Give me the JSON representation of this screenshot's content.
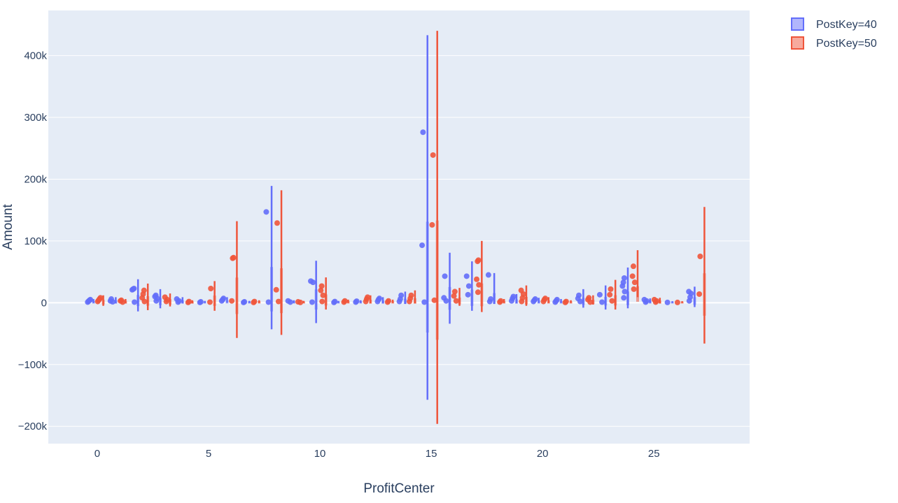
{
  "chart_data": {
    "type": "box",
    "xlabel": "ProfitCenter",
    "ylabel": "Amount",
    "xlim": [
      -2.2,
      29.3
    ],
    "ylim": [
      -228000,
      473000
    ],
    "xticks": [
      0,
      5,
      10,
      15,
      20,
      25
    ],
    "xtick_labels": [
      "0",
      "5",
      "10",
      "15",
      "20",
      "25"
    ],
    "yticks": [
      -200000,
      -100000,
      0,
      100000,
      200000,
      300000,
      400000
    ],
    "ytick_labels": [
      "−200k",
      "−100k",
      "0",
      "100k",
      "200k",
      "300k",
      "400k"
    ],
    "grid": true,
    "legend_position": "top-right",
    "series": [
      {
        "name": "PostKey=40",
        "color": "#636efa",
        "boxes": [
          {
            "x": 0,
            "low": -500,
            "high": 6000,
            "points": [
              1000,
              2500,
              4000,
              5000
            ]
          },
          {
            "x": 1,
            "low": -1000,
            "high": 9000,
            "points": [
              1500,
              3000,
              6000
            ]
          },
          {
            "x": 2,
            "low": -14000,
            "high": 38000,
            "points": [
              1000,
              21000,
              22000,
              23000
            ]
          },
          {
            "x": 3,
            "low": -9000,
            "high": 22000,
            "points": [
              3000,
              7000,
              10000,
              12000
            ]
          },
          {
            "x": 4,
            "low": -1000,
            "high": 9000,
            "points": [
              1000,
              3000,
              6000
            ]
          },
          {
            "x": 5,
            "low": -500,
            "high": 3000,
            "points": [
              500,
              1500
            ]
          },
          {
            "x": 6,
            "low": 0,
            "high": 9000,
            "points": [
              3000,
              5000,
              7000
            ]
          },
          {
            "x": 7,
            "low": -500,
            "high": 3000,
            "points": [
              500,
              1500
            ]
          },
          {
            "x": 8,
            "low": -43000,
            "high": 189000,
            "points": [
              1000,
              147000
            ]
          },
          {
            "x": 9,
            "low": -500,
            "high": 4000,
            "points": [
              1000,
              3000
            ]
          },
          {
            "x": 10,
            "low": -33000,
            "high": 68000,
            "points": [
              1000,
              33000,
              35000
            ]
          },
          {
            "x": 11,
            "low": -500,
            "high": 3000,
            "points": [
              500,
              2000
            ]
          },
          {
            "x": 12,
            "low": -500,
            "high": 4000,
            "points": [
              1000,
              2500
            ]
          },
          {
            "x": 13,
            "low": -1000,
            "high": 9000,
            "points": [
              2000,
              5000,
              7000
            ]
          },
          {
            "x": 14,
            "low": -2000,
            "high": 18000,
            "points": [
              2000,
              6000,
              12000
            ]
          },
          {
            "x": 15,
            "low": -157000,
            "high": 433000,
            "points": [
              1000,
              93000,
              276000
            ]
          },
          {
            "x": 16,
            "low": -34000,
            "high": 81000,
            "points": [
              3000,
              8000,
              43000
            ]
          },
          {
            "x": 17,
            "low": -13000,
            "high": 67000,
            "points": [
              13000,
              27000,
              43000
            ]
          },
          {
            "x": 18,
            "low": -2000,
            "high": 48000,
            "points": [
              2000,
              6000,
              45000
            ]
          },
          {
            "x": 19,
            "low": -1000,
            "high": 14000,
            "points": [
              3000,
              7000,
              10000
            ]
          },
          {
            "x": 20,
            "low": -500,
            "high": 8000,
            "points": [
              2000,
              4000,
              6000
            ]
          },
          {
            "x": 21,
            "low": -500,
            "high": 6000,
            "points": [
              1000,
              3000,
              5000
            ]
          },
          {
            "x": 22,
            "low": -8000,
            "high": 22000,
            "points": [
              2000,
              7000,
              12000
            ]
          },
          {
            "x": 23,
            "low": -11000,
            "high": 28000,
            "points": [
              1000,
              13000
            ]
          },
          {
            "x": 24,
            "low": -9000,
            "high": 57000,
            "points": [
              8000,
              18000,
              27000,
              33000,
              40000
            ]
          },
          {
            "x": 25,
            "low": -500,
            "high": 7000,
            "points": [
              1000,
              3000,
              5000
            ]
          },
          {
            "x": 26,
            "low": -500,
            "high": 2500,
            "points": [
              500
            ]
          },
          {
            "x": 27,
            "low": -7000,
            "high": 26000,
            "points": [
              3000,
              9000,
              15000,
              18000
            ]
          }
        ]
      },
      {
        "name": "PostKey=50",
        "color": "#ef553b",
        "boxes": [
          {
            "x": 0,
            "low": -5000,
            "high": 12000,
            "points": [
              2000,
              4000,
              6000,
              8000
            ]
          },
          {
            "x": 1,
            "low": -1000,
            "high": 6000,
            "points": [
              1000,
              3000,
              4000
            ]
          },
          {
            "x": 2,
            "low": -12000,
            "high": 31000,
            "points": [
              2000,
              8000,
              14000,
              20000
            ]
          },
          {
            "x": 3,
            "low": -6000,
            "high": 15000,
            "points": [
              2000,
              5000,
              9000
            ]
          },
          {
            "x": 4,
            "low": -1000,
            "high": 4000,
            "points": [
              500,
              2000
            ]
          },
          {
            "x": 5,
            "low": -13000,
            "high": 35000,
            "points": [
              1000,
              23000
            ]
          },
          {
            "x": 6,
            "low": -57000,
            "high": 132000,
            "points": [
              3000,
              72000,
              73000
            ]
          },
          {
            "x": 7,
            "low": -500,
            "high": 4000,
            "points": [
              500,
              2000
            ]
          },
          {
            "x": 8,
            "low": -52000,
            "high": 182000,
            "points": [
              2000,
              21000,
              129000
            ]
          },
          {
            "x": 9,
            "low": -500,
            "high": 3000,
            "points": [
              500,
              1500
            ]
          },
          {
            "x": 10,
            "low": -11000,
            "high": 41000,
            "points": [
              2000,
              12000,
              20000,
              27000
            ]
          },
          {
            "x": 11,
            "low": -500,
            "high": 5000,
            "points": [
              1000,
              3000
            ]
          },
          {
            "x": 12,
            "low": -1000,
            "high": 12000,
            "points": [
              2000,
              6000,
              9000
            ]
          },
          {
            "x": 13,
            "low": -500,
            "high": 5000,
            "points": [
              1000,
              3000
            ]
          },
          {
            "x": 14,
            "low": -1000,
            "high": 20000,
            "points": [
              2000,
              7000,
              12000
            ]
          },
          {
            "x": 15,
            "low": -196000,
            "high": 440000,
            "points": [
              4000,
              126000,
              239000
            ]
          },
          {
            "x": 16,
            "low": -5000,
            "high": 24000,
            "points": [
              3000,
              11000,
              18000
            ]
          },
          {
            "x": 17,
            "low": -15000,
            "high": 100000,
            "points": [
              17000,
              29000,
              38000,
              67000,
              69000
            ]
          },
          {
            "x": 18,
            "low": -500,
            "high": 6000,
            "points": [
              1000,
              3000
            ]
          },
          {
            "x": 19,
            "low": -5000,
            "high": 28000,
            "points": [
              2000,
              8000,
              14000,
              20000
            ]
          },
          {
            "x": 20,
            "low": -500,
            "high": 9000,
            "points": [
              2000,
              5000,
              7000
            ]
          },
          {
            "x": 21,
            "low": -500,
            "high": 4000,
            "points": [
              500,
              2000
            ]
          },
          {
            "x": 22,
            "low": -3000,
            "high": 12000,
            "points": [
              1000,
              5000,
              8000
            ]
          },
          {
            "x": 23,
            "low": -11000,
            "high": 37000,
            "points": [
              3000,
              13000,
              22000
            ]
          },
          {
            "x": 24,
            "low": 9000,
            "high": 85000,
            "points": [
              22000,
              33000,
              43000,
              59000
            ]
          },
          {
            "x": 25,
            "low": -1000,
            "high": 8000,
            "points": [
              1000,
              3000,
              5000
            ]
          },
          {
            "x": 26,
            "low": -500,
            "high": 2500,
            "points": [
              500
            ]
          },
          {
            "x": 27,
            "low": -66000,
            "high": 155000,
            "points": [
              14000,
              75000
            ]
          }
        ]
      }
    ]
  }
}
